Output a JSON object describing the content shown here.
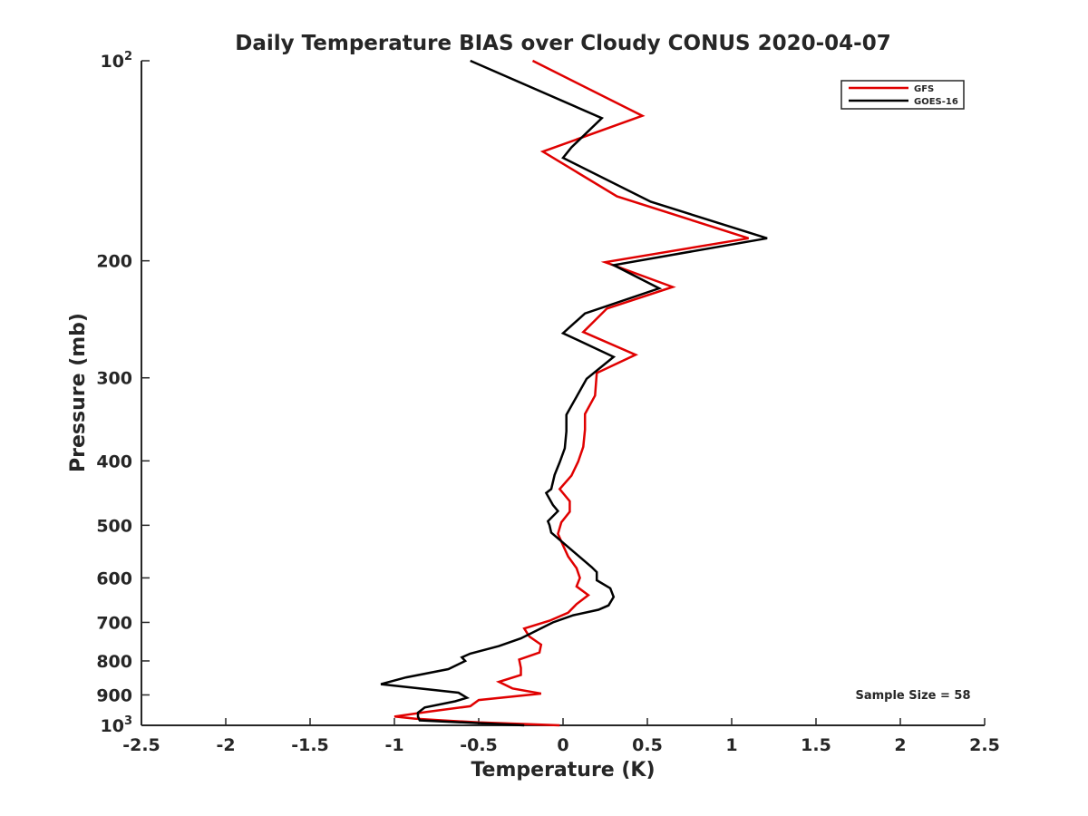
{
  "chart_data": {
    "type": "line",
    "title": "Daily Temperature BIAS over Cloudy CONUS 2020-04-07",
    "xlabel": "Temperature (K)",
    "ylabel": "Pressure (mb)",
    "xlim": [
      -2.5,
      2.5
    ],
    "ylim": [
      100,
      1000
    ],
    "yscale": "log",
    "yreversed": true,
    "grid": false,
    "legend_position": "top-right",
    "xticks": [
      -2.5,
      -2,
      -1.5,
      -1,
      -0.5,
      0,
      0.5,
      1,
      1.5,
      2,
      2.5
    ],
    "xtick_labels": [
      "-2.5",
      "-2",
      "-1.5",
      "-1",
      "-0.5",
      "0",
      "0.5",
      "1",
      "1.5",
      "2",
      "2.5"
    ],
    "yticks": [
      100,
      200,
      300,
      400,
      500,
      600,
      700,
      800,
      900,
      1000
    ],
    "ytick_labels": [
      {
        "base": "10",
        "exp": "2"
      },
      {
        "base": "200",
        "exp": ""
      },
      {
        "base": "300",
        "exp": ""
      },
      {
        "base": "400",
        "exp": ""
      },
      {
        "base": "500",
        "exp": ""
      },
      {
        "base": "600",
        "exp": ""
      },
      {
        "base": "700",
        "exp": ""
      },
      {
        "base": "800",
        "exp": ""
      },
      {
        "base": "900",
        "exp": ""
      },
      {
        "base": "10",
        "exp": "3"
      }
    ],
    "annotation": "Sample Size = 58",
    "series": [
      {
        "name": "GFS",
        "color": "#e00000",
        "points": [
          [
            -0.18,
            100
          ],
          [
            0.47,
            121
          ],
          [
            -0.12,
            137
          ],
          [
            0.32,
            160
          ],
          [
            1.1,
            185
          ],
          [
            0.25,
            201
          ],
          [
            0.65,
            219
          ],
          [
            0.26,
            236
          ],
          [
            0.12,
            256
          ],
          [
            0.43,
            277
          ],
          [
            0.2,
            295
          ],
          [
            0.19,
            319
          ],
          [
            0.13,
            340
          ],
          [
            0.13,
            359
          ],
          [
            0.12,
            381
          ],
          [
            0.09,
            401
          ],
          [
            0.05,
            421
          ],
          [
            -0.02,
            441
          ],
          [
            0.04,
            460
          ],
          [
            0.04,
            477
          ],
          [
            -0.01,
            495
          ],
          [
            -0.03,
            515
          ],
          [
            0.0,
            536
          ],
          [
            0.03,
            557
          ],
          [
            0.08,
            580
          ],
          [
            0.1,
            600
          ],
          [
            0.08,
            618
          ],
          [
            0.15,
            637
          ],
          [
            0.08,
            657
          ],
          [
            0.03,
            677
          ],
          [
            -0.08,
            696
          ],
          [
            -0.23,
            715
          ],
          [
            -0.2,
            735
          ],
          [
            -0.13,
            756
          ],
          [
            -0.14,
            777
          ],
          [
            -0.26,
            796
          ],
          [
            -0.25,
            820
          ],
          [
            -0.25,
            840
          ],
          [
            -0.38,
            860
          ],
          [
            -0.3,
            880
          ],
          [
            -0.13,
            896
          ],
          [
            -0.5,
            916
          ],
          [
            -0.55,
            936
          ],
          [
            -0.8,
            954
          ],
          [
            -1.0,
            970
          ],
          [
            -0.88,
            977
          ],
          [
            -0.72,
            983
          ],
          [
            -0.5,
            990
          ],
          [
            -0.2,
            996
          ],
          [
            -0.02,
            1000
          ]
        ]
      },
      {
        "name": "GOES-16",
        "color": "#000000",
        "points": [
          [
            -0.55,
            100
          ],
          [
            0.23,
            122
          ],
          [
            0.05,
            135
          ],
          [
            0.0,
            140
          ],
          [
            0.52,
            163
          ],
          [
            1.21,
            185
          ],
          [
            0.3,
            203
          ],
          [
            0.57,
            220
          ],
          [
            0.13,
            240
          ],
          [
            0.0,
            257
          ],
          [
            0.3,
            279
          ],
          [
            0.14,
            301
          ],
          [
            0.02,
            341
          ],
          [
            0.02,
            361
          ],
          [
            0.01,
            383
          ],
          [
            -0.02,
            402
          ],
          [
            -0.05,
            420
          ],
          [
            -0.07,
            441
          ],
          [
            -0.1,
            447
          ],
          [
            -0.06,
            466
          ],
          [
            -0.03,
            476
          ],
          [
            -0.09,
            493
          ],
          [
            -0.08,
            500
          ],
          [
            -0.07,
            513
          ],
          [
            0.17,
            578
          ],
          [
            0.2,
            588
          ],
          [
            0.2,
            605
          ],
          [
            0.28,
            622
          ],
          [
            0.3,
            641
          ],
          [
            0.27,
            660
          ],
          [
            0.21,
            670
          ],
          [
            0.06,
            683
          ],
          [
            -0.06,
            700
          ],
          [
            -0.25,
            740
          ],
          [
            -0.38,
            760
          ],
          [
            -0.55,
            780
          ],
          [
            -0.6,
            790
          ],
          [
            -0.58,
            800
          ],
          [
            -0.68,
            823
          ],
          [
            -0.93,
            847
          ],
          [
            -1.08,
            867
          ],
          [
            -0.62,
            893
          ],
          [
            -0.57,
            909
          ],
          [
            -0.64,
            920
          ],
          [
            -0.82,
            940
          ],
          [
            -0.86,
            957
          ],
          [
            -0.86,
            970
          ],
          [
            -0.85,
            983
          ],
          [
            -0.23,
            1000
          ]
        ]
      }
    ]
  }
}
